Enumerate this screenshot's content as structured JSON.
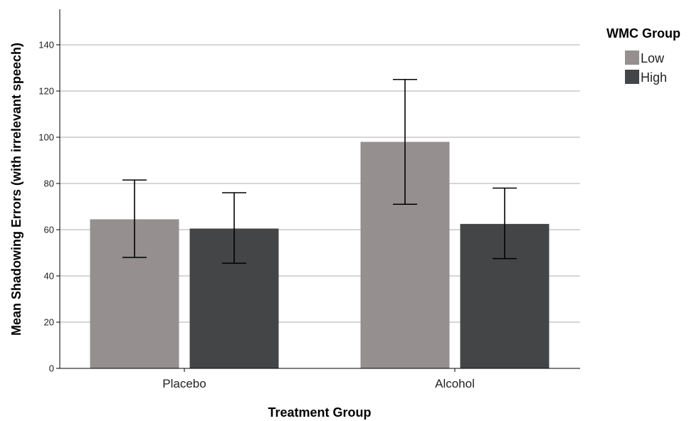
{
  "chart_data": {
    "type": "bar",
    "categories": [
      "Placebo",
      "Alcohol"
    ],
    "series": [
      {
        "name": "Low",
        "color": "#958f8f",
        "values": [
          64.5,
          98
        ],
        "error_low": [
          48,
          71
        ],
        "error_high": [
          81.5,
          125
        ]
      },
      {
        "name": "High",
        "color": "#444546",
        "values": [
          60.5,
          62.5
        ],
        "error_low": [
          45.5,
          47.5
        ],
        "error_high": [
          76,
          78
        ]
      }
    ],
    "xlabel": "Treatment Group",
    "ylabel": "Mean Shadowing Errors (with irrelevant speech)",
    "ylim": [
      0,
      155
    ],
    "yticks": [
      0,
      20,
      40,
      60,
      80,
      100,
      120,
      140
    ],
    "grid": true,
    "legend": {
      "title": "WMC Group",
      "position": "top-right"
    }
  }
}
